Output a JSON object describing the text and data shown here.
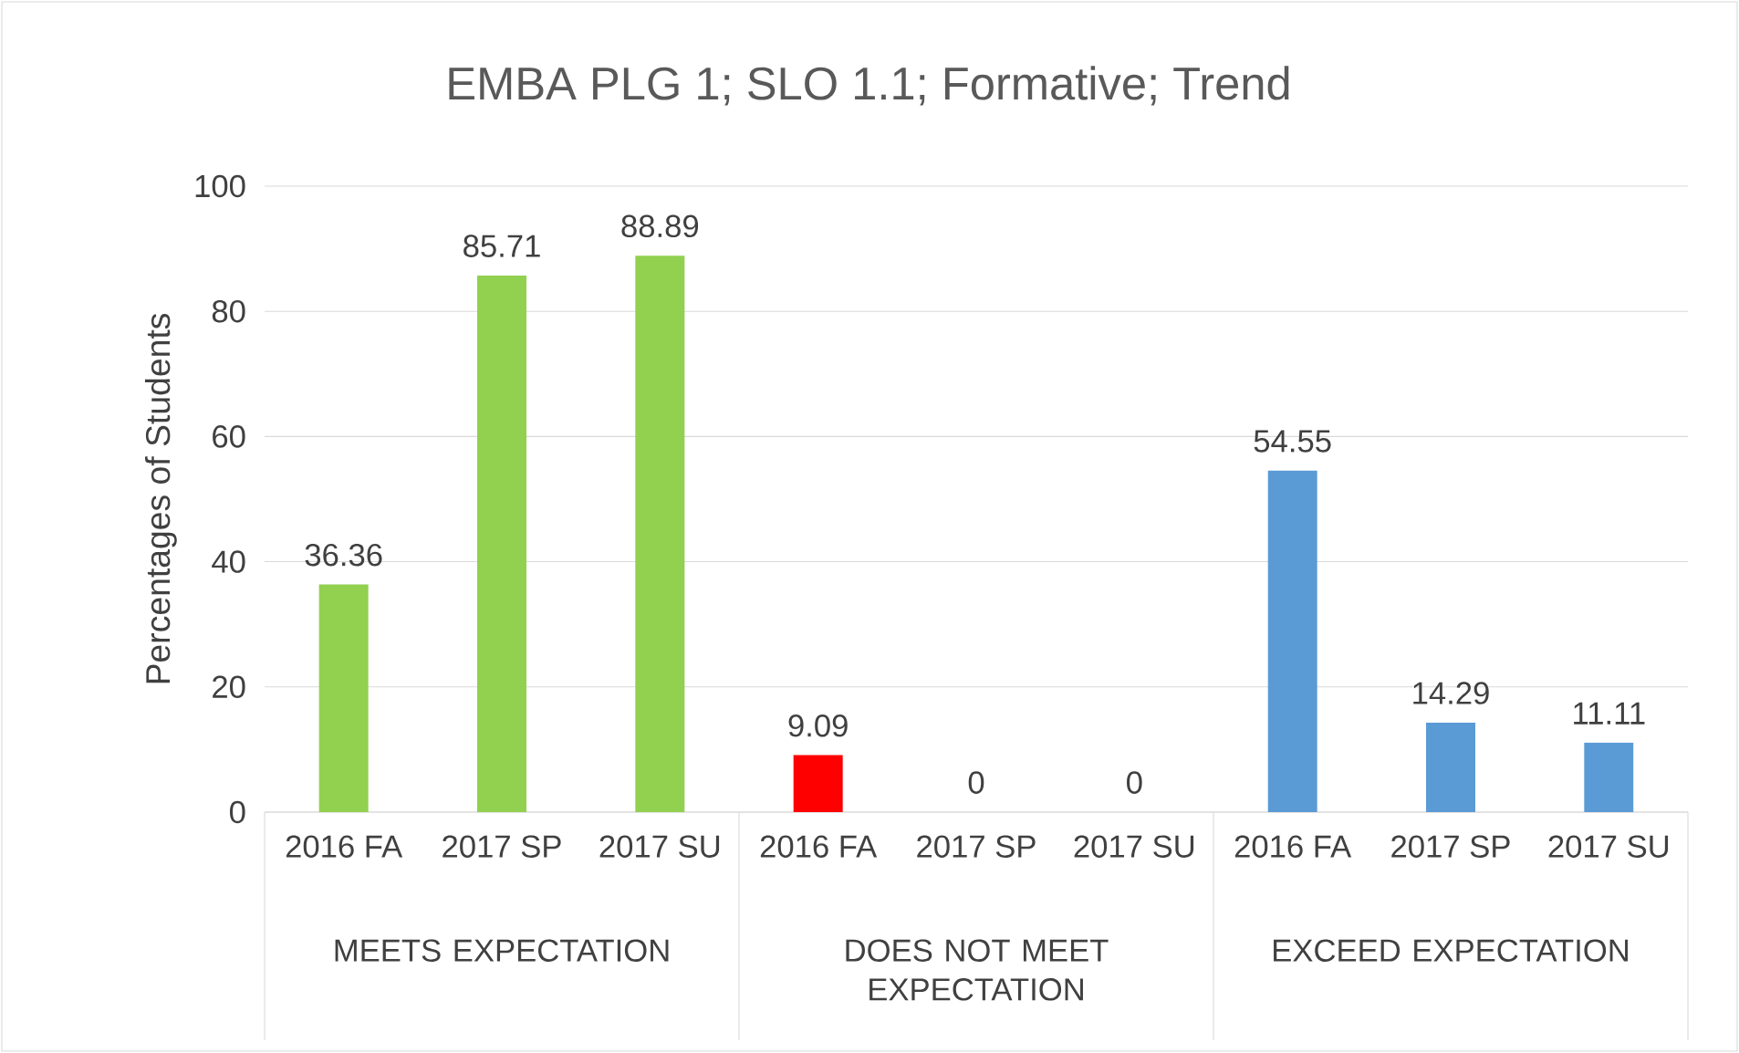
{
  "chart_data": {
    "type": "bar",
    "title": "EMBA PLG 1; SLO 1.1; Formative; Trend",
    "ylabel": "Percentages of Students",
    "categories": [
      "2016 FA",
      "2017 SP",
      "2017 SU",
      "2016 FA",
      "2017 SP",
      "2017 SU",
      "2016 FA",
      "2017 SP",
      "2017 SU"
    ],
    "values": [
      36.36,
      85.71,
      88.89,
      9.09,
      0,
      0,
      54.55,
      14.29,
      11.11
    ],
    "colors": [
      "#92d050",
      "#92d050",
      "#92d050",
      "#ff0000",
      "#ff0000",
      "#ff0000",
      "#5b9bd5",
      "#5b9bd5",
      "#5b9bd5"
    ],
    "annotations": [
      "MEETS EXPECTATION",
      "DOES NOT MEET EXPECTATION",
      "EXCEED EXPECTATION"
    ],
    "ylim": [
      0,
      100
    ],
    "yticks": [
      0,
      20,
      40,
      60,
      80,
      100
    ],
    "grid": "y",
    "data_labels": true
  }
}
